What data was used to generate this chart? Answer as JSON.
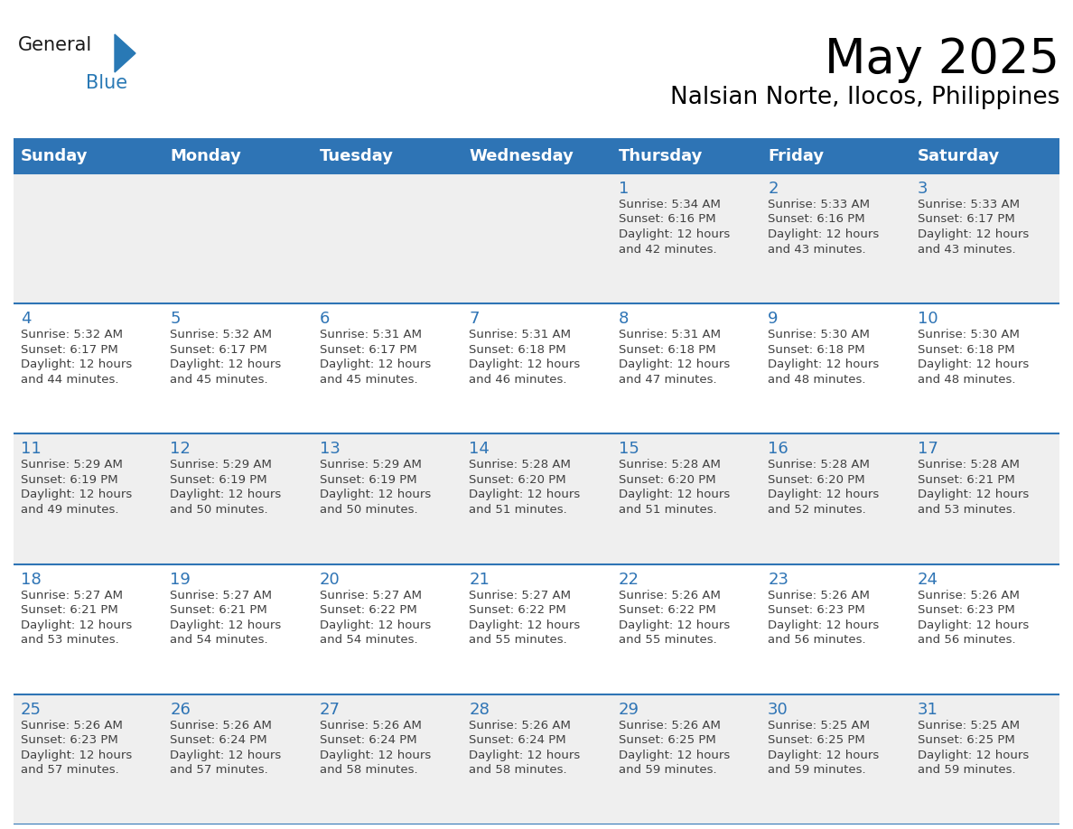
{
  "title": "May 2025",
  "subtitle": "Nalsian Norte, Ilocos, Philippines",
  "days_of_week": [
    "Sunday",
    "Monday",
    "Tuesday",
    "Wednesday",
    "Thursday",
    "Friday",
    "Saturday"
  ],
  "header_bg": "#2E74B5",
  "header_text_color": "#FFFFFF",
  "row_bg_even": "#EFEFEF",
  "row_bg_odd": "#FFFFFF",
  "day_number_color": "#2E74B5",
  "info_text_color": "#404040",
  "border_color": "#2E74B5",
  "calendar_data": [
    [
      null,
      null,
      null,
      null,
      {
        "day": 1,
        "sunrise": "5:34 AM",
        "sunset": "6:16 PM",
        "daylight": "12 hours and 42 minutes"
      },
      {
        "day": 2,
        "sunrise": "5:33 AM",
        "sunset": "6:16 PM",
        "daylight": "12 hours and 43 minutes"
      },
      {
        "day": 3,
        "sunrise": "5:33 AM",
        "sunset": "6:17 PM",
        "daylight": "12 hours and 43 minutes"
      }
    ],
    [
      {
        "day": 4,
        "sunrise": "5:32 AM",
        "sunset": "6:17 PM",
        "daylight": "12 hours and 44 minutes"
      },
      {
        "day": 5,
        "sunrise": "5:32 AM",
        "sunset": "6:17 PM",
        "daylight": "12 hours and 45 minutes"
      },
      {
        "day": 6,
        "sunrise": "5:31 AM",
        "sunset": "6:17 PM",
        "daylight": "12 hours and 45 minutes"
      },
      {
        "day": 7,
        "sunrise": "5:31 AM",
        "sunset": "6:18 PM",
        "daylight": "12 hours and 46 minutes"
      },
      {
        "day": 8,
        "sunrise": "5:31 AM",
        "sunset": "6:18 PM",
        "daylight": "12 hours and 47 minutes"
      },
      {
        "day": 9,
        "sunrise": "5:30 AM",
        "sunset": "6:18 PM",
        "daylight": "12 hours and 48 minutes"
      },
      {
        "day": 10,
        "sunrise": "5:30 AM",
        "sunset": "6:18 PM",
        "daylight": "12 hours and 48 minutes"
      }
    ],
    [
      {
        "day": 11,
        "sunrise": "5:29 AM",
        "sunset": "6:19 PM",
        "daylight": "12 hours and 49 minutes"
      },
      {
        "day": 12,
        "sunrise": "5:29 AM",
        "sunset": "6:19 PM",
        "daylight": "12 hours and 50 minutes"
      },
      {
        "day": 13,
        "sunrise": "5:29 AM",
        "sunset": "6:19 PM",
        "daylight": "12 hours and 50 minutes"
      },
      {
        "day": 14,
        "sunrise": "5:28 AM",
        "sunset": "6:20 PM",
        "daylight": "12 hours and 51 minutes"
      },
      {
        "day": 15,
        "sunrise": "5:28 AM",
        "sunset": "6:20 PM",
        "daylight": "12 hours and 51 minutes"
      },
      {
        "day": 16,
        "sunrise": "5:28 AM",
        "sunset": "6:20 PM",
        "daylight": "12 hours and 52 minutes"
      },
      {
        "day": 17,
        "sunrise": "5:28 AM",
        "sunset": "6:21 PM",
        "daylight": "12 hours and 53 minutes"
      }
    ],
    [
      {
        "day": 18,
        "sunrise": "5:27 AM",
        "sunset": "6:21 PM",
        "daylight": "12 hours and 53 minutes"
      },
      {
        "day": 19,
        "sunrise": "5:27 AM",
        "sunset": "6:21 PM",
        "daylight": "12 hours and 54 minutes"
      },
      {
        "day": 20,
        "sunrise": "5:27 AM",
        "sunset": "6:22 PM",
        "daylight": "12 hours and 54 minutes"
      },
      {
        "day": 21,
        "sunrise": "5:27 AM",
        "sunset": "6:22 PM",
        "daylight": "12 hours and 55 minutes"
      },
      {
        "day": 22,
        "sunrise": "5:26 AM",
        "sunset": "6:22 PM",
        "daylight": "12 hours and 55 minutes"
      },
      {
        "day": 23,
        "sunrise": "5:26 AM",
        "sunset": "6:23 PM",
        "daylight": "12 hours and 56 minutes"
      },
      {
        "day": 24,
        "sunrise": "5:26 AM",
        "sunset": "6:23 PM",
        "daylight": "12 hours and 56 minutes"
      }
    ],
    [
      {
        "day": 25,
        "sunrise": "5:26 AM",
        "sunset": "6:23 PM",
        "daylight": "12 hours and 57 minutes"
      },
      {
        "day": 26,
        "sunrise": "5:26 AM",
        "sunset": "6:24 PM",
        "daylight": "12 hours and 57 minutes"
      },
      {
        "day": 27,
        "sunrise": "5:26 AM",
        "sunset": "6:24 PM",
        "daylight": "12 hours and 58 minutes"
      },
      {
        "day": 28,
        "sunrise": "5:26 AM",
        "sunset": "6:24 PM",
        "daylight": "12 hours and 58 minutes"
      },
      {
        "day": 29,
        "sunrise": "5:26 AM",
        "sunset": "6:25 PM",
        "daylight": "12 hours and 59 minutes"
      },
      {
        "day": 30,
        "sunrise": "5:25 AM",
        "sunset": "6:25 PM",
        "daylight": "12 hours and 59 minutes"
      },
      {
        "day": 31,
        "sunrise": "5:25 AM",
        "sunset": "6:25 PM",
        "daylight": "12 hours and 59 minutes"
      }
    ]
  ],
  "logo_general_color": "#1A1A1A",
  "logo_blue_color": "#2979B5",
  "title_fontsize": 38,
  "subtitle_fontsize": 19,
  "header_fontsize": 13,
  "day_number_fontsize": 13,
  "info_fontsize": 9.5
}
